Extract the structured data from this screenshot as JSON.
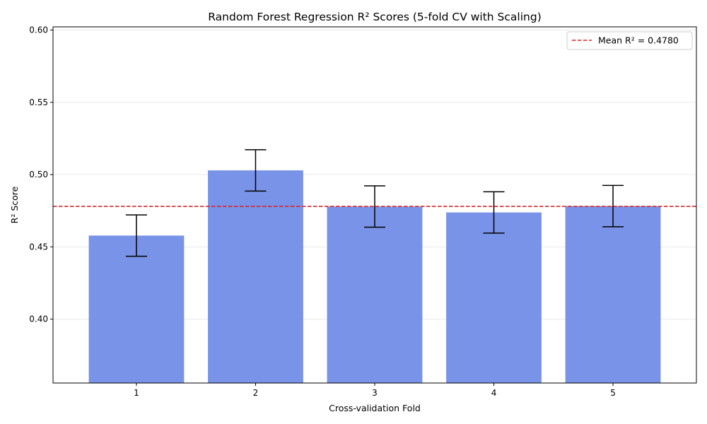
{
  "chart_data": {
    "type": "bar",
    "title": "Random Forest Regression R² Scores (5-fold CV with Scaling)",
    "xlabel": "Cross-validation Fold",
    "ylabel": "R² Score",
    "categories": [
      "1",
      "2",
      "3",
      "4",
      "5"
    ],
    "values": [
      0.4578,
      0.5029,
      0.4779,
      0.4738,
      0.4782
    ],
    "error": [
      0.0143,
      0.0143,
      0.0143,
      0.0143,
      0.0143
    ],
    "ylim": [
      0.3558,
      0.6022
    ],
    "yticks": [
      0.4,
      0.45,
      0.5,
      0.55,
      0.6
    ],
    "ytick_labels": [
      "0.40",
      "0.45",
      "0.50",
      "0.55",
      "0.60"
    ],
    "mean_line": {
      "value": 0.478,
      "label": "Mean R² = 0.4780"
    },
    "grid": "y",
    "legend_position": "top-right",
    "colors": {
      "bar": "#7893e7",
      "error_bar": "#000000",
      "mean_line": "#d62728",
      "grid": "#e8e8e8",
      "axis": "#000000"
    }
  }
}
